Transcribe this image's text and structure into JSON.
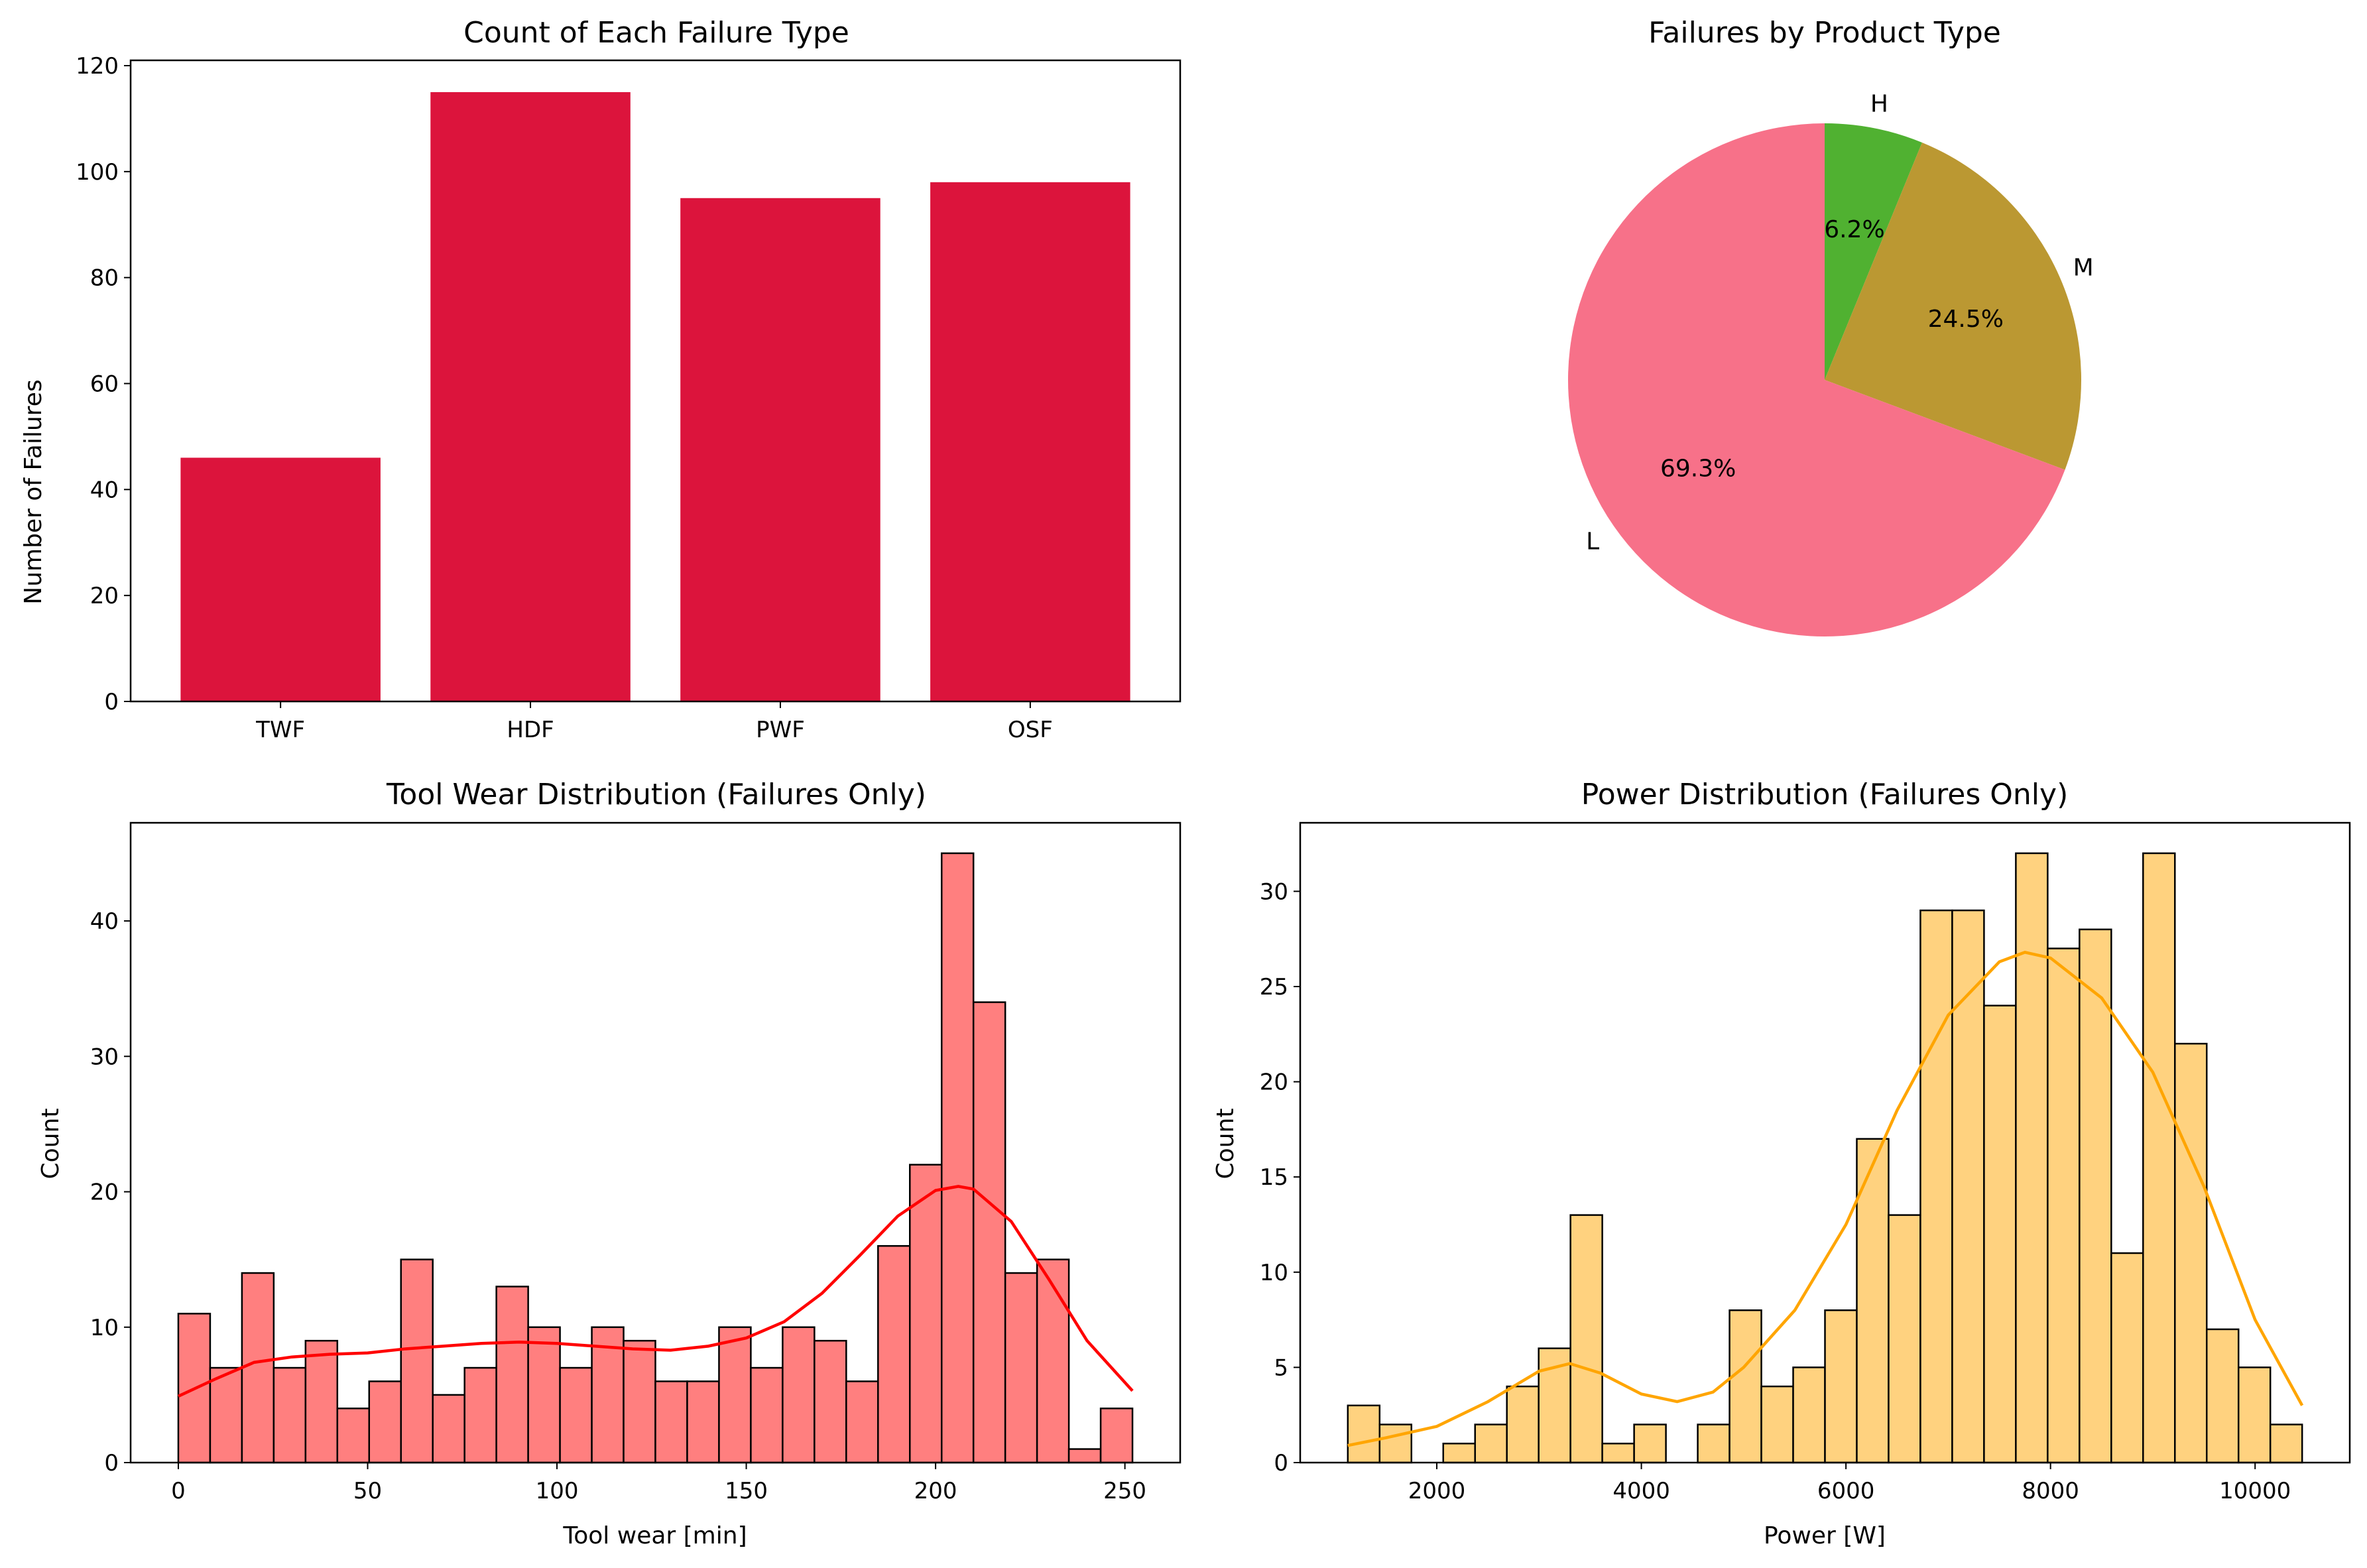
{
  "colors": {
    "bar": "#DC143C",
    "pie_L": "#F77189",
    "pie_M": "#BB9832",
    "pie_H": "#50B131",
    "hist_wear_fill": "#FF7F7F",
    "hist_wear_kde": "#FF0000",
    "hist_power_fill": "#FFD27F",
    "hist_power_kde": "#FFA500",
    "edge": "#000000"
  },
  "chart_data": [
    {
      "id": "failure_types",
      "type": "bar",
      "title": "Count of Each Failure Type",
      "xlabel": "",
      "ylabel": "Number of Failures",
      "categories": [
        "TWF",
        "HDF",
        "PWF",
        "OSF"
      ],
      "values": [
        46,
        115,
        95,
        98
      ],
      "ylim": [
        0,
        121
      ],
      "yticks": [
        0,
        20,
        40,
        60,
        80,
        100,
        120
      ],
      "grid": false
    },
    {
      "id": "product_type",
      "type": "pie",
      "title": "Failures by Product Type",
      "labels": [
        "H",
        "M",
        "L"
      ],
      "values": [
        6.2,
        24.5,
        69.3
      ],
      "pct_labels": [
        "6.2%",
        "24.5%",
        "69.3%"
      ],
      "start_angle_deg": 90,
      "direction": "clockwise"
    },
    {
      "id": "tool_wear",
      "type": "bar",
      "subtype": "histogram",
      "title": "Tool Wear Distribution (Failures Only)",
      "xlabel": "Tool wear [min]",
      "ylabel": "Count",
      "bin_start": 0,
      "bin_width": 8.4,
      "counts": [
        11,
        7,
        14,
        7,
        9,
        4,
        6,
        15,
        5,
        7,
        13,
        10,
        7,
        10,
        9,
        6,
        6,
        10,
        7,
        10,
        9,
        6,
        16,
        22,
        45,
        34,
        14,
        15,
        1,
        4
      ],
      "kde": {
        "x": [
          0,
          10,
          20,
          30,
          40,
          50,
          60,
          70,
          80,
          90,
          100,
          110,
          120,
          130,
          140,
          150,
          160,
          170,
          180,
          190,
          200,
          206,
          210,
          220,
          230,
          240,
          252
        ],
        "y": [
          4.9,
          6.2,
          7.4,
          7.8,
          8.0,
          8.1,
          8.4,
          8.6,
          8.8,
          8.9,
          8.8,
          8.6,
          8.4,
          8.3,
          8.6,
          9.2,
          10.4,
          12.5,
          15.3,
          18.2,
          20.1,
          20.4,
          20.2,
          17.8,
          13.5,
          9.0,
          5.3
        ]
      },
      "xlim": [
        -12.6,
        264.6
      ],
      "ylim": [
        0,
        47.25
      ],
      "xticks": [
        0,
        50,
        100,
        150,
        200,
        250
      ],
      "yticks": [
        0,
        10,
        20,
        30,
        40
      ],
      "grid": false
    },
    {
      "id": "power",
      "type": "bar",
      "subtype": "histogram",
      "title": "Power Distribution (Failures Only)",
      "xlabel": "Power [W]",
      "ylabel": "Count",
      "bin_start": 1130,
      "bin_width": 311,
      "counts": [
        3,
        2,
        0,
        1,
        2,
        4,
        6,
        13,
        1,
        2,
        0,
        2,
        8,
        4,
        5,
        8,
        17,
        13,
        29,
        29,
        24,
        32,
        27,
        28,
        11,
        32,
        22,
        7,
        5,
        2
      ],
      "kde": {
        "x": [
          1130,
          1500,
          2000,
          2500,
          3000,
          3300,
          3600,
          4000,
          4350,
          4700,
          5000,
          5500,
          6000,
          6500,
          7000,
          7500,
          7750,
          8000,
          8500,
          9000,
          9500,
          10000,
          10460
        ],
        "y": [
          0.9,
          1.3,
          1.9,
          3.2,
          4.8,
          5.2,
          4.7,
          3.6,
          3.2,
          3.7,
          5.0,
          8.0,
          12.5,
          18.5,
          23.5,
          26.3,
          26.8,
          26.5,
          24.4,
          20.5,
          14.5,
          7.5,
          3.0
        ]
      },
      "xlim": [
        664.5,
        10925.5
      ],
      "ylim": [
        0,
        33.6
      ],
      "xticks": [
        2000,
        4000,
        6000,
        8000,
        10000
      ],
      "yticks": [
        0,
        5,
        10,
        15,
        20,
        25,
        30
      ],
      "grid": false
    }
  ]
}
